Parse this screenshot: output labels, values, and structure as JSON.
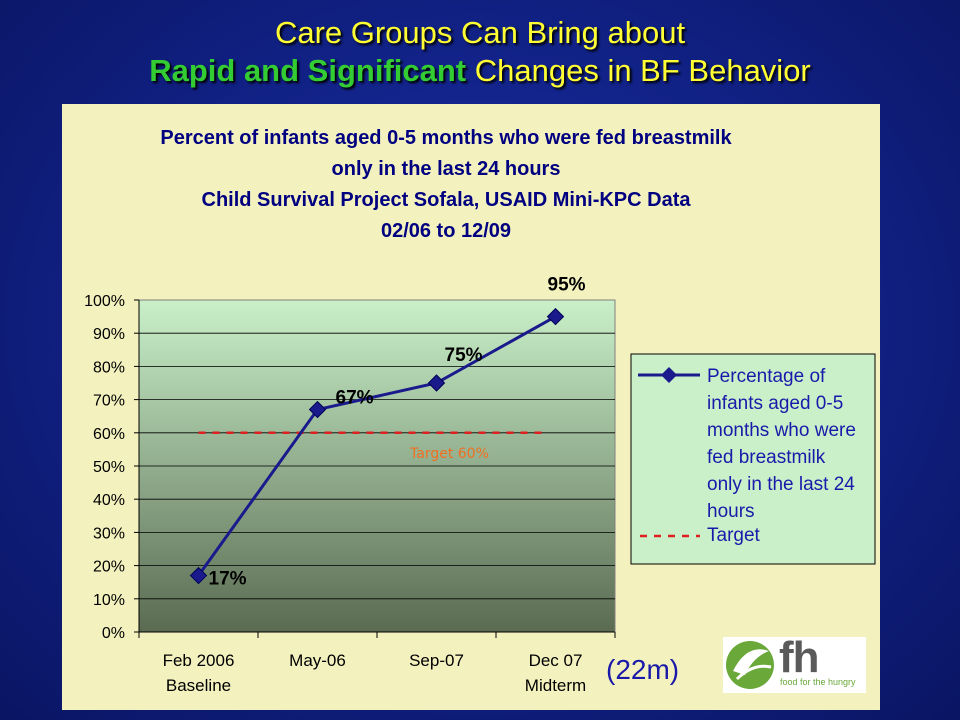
{
  "slide": {
    "title_line1": "Care Groups Can Bring about",
    "title_line2_highlight": "Rapid and Significant",
    "title_line2_rest": " Changes in BF Behavior",
    "duration_label": "(22m)",
    "logo": {
      "mark": "fh",
      "tagline": "food for the hungry"
    }
  },
  "chart_data": {
    "type": "line",
    "title": [
      "Percent of infants aged 0-5 months who were fed breastmilk",
      "only in the last 24 hours",
      "Child Survival Project Sofala, USAID Mini-KPC Data",
      "02/06 to 12/09"
    ],
    "categories": [
      [
        "Feb 2006",
        "Baseline"
      ],
      [
        "May-06",
        ""
      ],
      [
        "Sep-07",
        ""
      ],
      [
        "Dec 07",
        "Midterm"
      ]
    ],
    "ylim": [
      0,
      100
    ],
    "yticks": [
      "0%",
      "10%",
      "20%",
      "30%",
      "40%",
      "50%",
      "60%",
      "70%",
      "80%",
      "90%",
      "100%"
    ],
    "series": [
      {
        "name": "Percentage of infants aged 0-5 months who were fed breastmilk only in the last 24 hours",
        "legend_lines": [
          "Percentage of",
          "infants aged 0-5",
          "months who were",
          "fed breastmilk",
          "only in the last 24",
          "hours"
        ],
        "values": [
          17,
          67,
          75,
          95
        ],
        "labels": [
          "17%",
          "67%",
          "75%",
          "95%"
        ],
        "color": "#1a1a8c"
      },
      {
        "name": "Target",
        "value": 60,
        "color": "#e02020"
      }
    ],
    "annotations": [
      {
        "text": "Target 60%",
        "color": "#f07020"
      }
    ],
    "legend_position": "right",
    "grid": true,
    "plot_background": [
      "#c9f0c9",
      "#5a6b52"
    ]
  }
}
